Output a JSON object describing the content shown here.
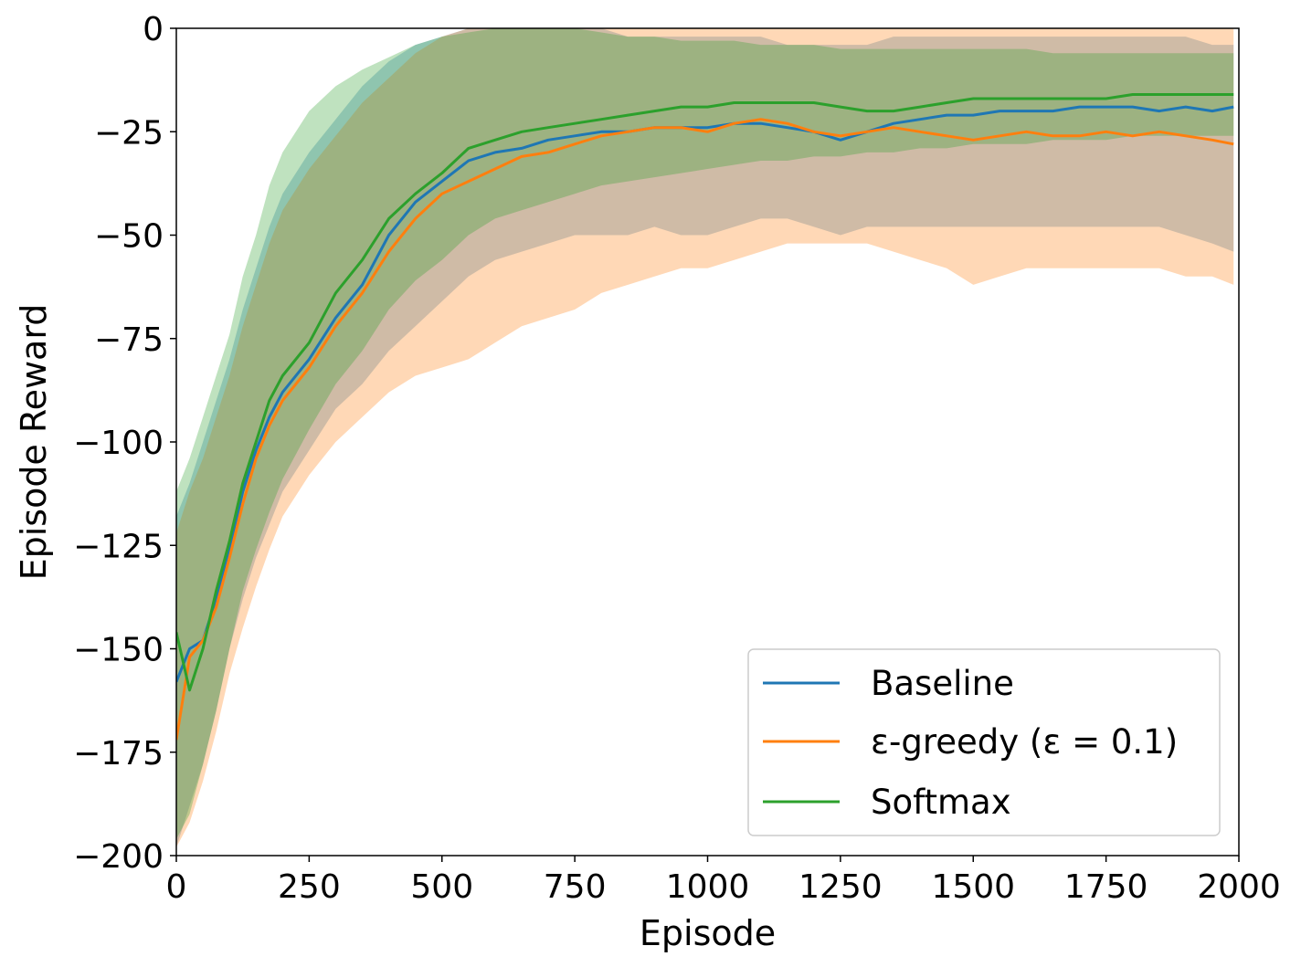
{
  "chart_data": {
    "type": "line",
    "title": "",
    "xlabel": "Episode",
    "ylabel": "Episode Reward",
    "xlim": [
      0,
      2000
    ],
    "ylim": [
      -200,
      0
    ],
    "xticks": [
      0,
      250,
      500,
      750,
      1000,
      1250,
      1500,
      1750,
      2000
    ],
    "yticks": [
      0,
      -25,
      -50,
      -75,
      -100,
      -125,
      -150,
      -175,
      -200
    ],
    "xtick_labels": [
      "0",
      "250",
      "500",
      "750",
      "1000",
      "1250",
      "1500",
      "1750",
      "2000"
    ],
    "ytick_labels": [
      "0",
      "−25",
      "−50",
      "−75",
      "−100",
      "−125",
      "−150",
      "−175",
      "−200"
    ],
    "grid": false,
    "legend_position": "bottom-right",
    "x": [
      0,
      25,
      50,
      75,
      100,
      125,
      150,
      175,
      200,
      250,
      300,
      350,
      400,
      450,
      500,
      550,
      600,
      650,
      700,
      750,
      800,
      850,
      900,
      950,
      1000,
      1050,
      1100,
      1150,
      1200,
      1250,
      1300,
      1350,
      1400,
      1450,
      1500,
      1550,
      1600,
      1650,
      1700,
      1750,
      1800,
      1850,
      1900,
      1950,
      1990
    ],
    "series": [
      {
        "name": "Baseline",
        "color": "#1f77b4",
        "band_opacity": 0.3,
        "values": [
          -158,
          -150,
          -148,
          -138,
          -126,
          -112,
          -102,
          -94,
          -88,
          -80,
          -70,
          -62,
          -50,
          -42,
          -37,
          -32,
          -30,
          -29,
          -27,
          -26,
          -25,
          -25,
          -24,
          -24,
          -24,
          -23,
          -23,
          -24,
          -25,
          -27,
          -25,
          -23,
          -22,
          -21,
          -21,
          -20,
          -20,
          -20,
          -19,
          -19,
          -19,
          -20,
          -19,
          -20,
          -19
        ],
        "lower": [
          -198,
          -188,
          -178,
          -165,
          -150,
          -138,
          -128,
          -120,
          -112,
          -102,
          -92,
          -86,
          -78,
          -72,
          -66,
          -60,
          -56,
          -54,
          -52,
          -50,
          -50,
          -50,
          -48,
          -50,
          -50,
          -48,
          -46,
          -46,
          -48,
          -50,
          -48,
          -48,
          -48,
          -48,
          -48,
          -48,
          -48,
          -48,
          -48,
          -48,
          -48,
          -48,
          -50,
          -52,
          -54
        ],
        "upper": [
          -118,
          -110,
          -100,
          -90,
          -80,
          -68,
          -58,
          -48,
          -40,
          -30,
          -22,
          -14,
          -8,
          -4,
          -2,
          0,
          0,
          0,
          0,
          0,
          0,
          -2,
          -2,
          -2,
          -2,
          -2,
          -2,
          -4,
          -4,
          -4,
          -4,
          -2,
          -2,
          -2,
          -2,
          -2,
          -2,
          -2,
          -2,
          -2,
          -2,
          -2,
          -2,
          -4,
          -4
        ]
      },
      {
        "name": "ε-greedy (ε = 0.1)",
        "color": "#ff7f0e",
        "band_opacity": 0.3,
        "values": [
          -172,
          -152,
          -148,
          -140,
          -128,
          -115,
          -104,
          -96,
          -90,
          -82,
          -72,
          -64,
          -54,
          -46,
          -40,
          -37,
          -34,
          -31,
          -30,
          -28,
          -26,
          -25,
          -24,
          -24,
          -25,
          -23,
          -22,
          -23,
          -25,
          -26,
          -25,
          -24,
          -25,
          -26,
          -27,
          -26,
          -25,
          -26,
          -26,
          -25,
          -26,
          -25,
          -26,
          -27,
          -28
        ],
        "lower": [
          -198,
          -192,
          -182,
          -170,
          -156,
          -145,
          -135,
          -126,
          -118,
          -108,
          -100,
          -94,
          -88,
          -84,
          -82,
          -80,
          -76,
          -72,
          -70,
          -68,
          -64,
          -62,
          -60,
          -58,
          -58,
          -56,
          -54,
          -52,
          -52,
          -52,
          -52,
          -54,
          -56,
          -58,
          -62,
          -60,
          -58,
          -58,
          -58,
          -58,
          -58,
          -58,
          -60,
          -60,
          -62
        ],
        "upper": [
          -122,
          -112,
          -104,
          -94,
          -84,
          -72,
          -62,
          -52,
          -44,
          -34,
          -26,
          -18,
          -12,
          -6,
          -2,
          0,
          0,
          0,
          0,
          0,
          0,
          0,
          0,
          0,
          0,
          0,
          0,
          0,
          0,
          0,
          0,
          0,
          0,
          0,
          0,
          0,
          0,
          0,
          0,
          0,
          0,
          0,
          0,
          0,
          0
        ]
      },
      {
        "name": "Softmax",
        "color": "#2ca02c",
        "band_opacity": 0.3,
        "values": [
          -146,
          -160,
          -150,
          -136,
          -124,
          -110,
          -100,
          -90,
          -84,
          -76,
          -64,
          -56,
          -46,
          -40,
          -35,
          -29,
          -27,
          -25,
          -24,
          -23,
          -22,
          -21,
          -20,
          -19,
          -19,
          -18,
          -18,
          -18,
          -18,
          -19,
          -20,
          -20,
          -19,
          -18,
          -17,
          -17,
          -17,
          -17,
          -17,
          -17,
          -16,
          -16,
          -16,
          -16,
          -16
        ],
        "lower": [
          -196,
          -190,
          -178,
          -165,
          -150,
          -136,
          -126,
          -117,
          -109,
          -97,
          -86,
          -78,
          -68,
          -61,
          -56,
          -50,
          -46,
          -44,
          -42,
          -40,
          -38,
          -37,
          -36,
          -35,
          -34,
          -33,
          -32,
          -32,
          -31,
          -31,
          -30,
          -30,
          -29,
          -29,
          -28,
          -28,
          -28,
          -27,
          -27,
          -27,
          -26,
          -26,
          -26,
          -26,
          -26
        ],
        "upper": [
          -112,
          -104,
          -94,
          -84,
          -74,
          -60,
          -50,
          -38,
          -30,
          -20,
          -14,
          -10,
          -7,
          -4,
          -2,
          -1,
          0,
          0,
          0,
          0,
          -1,
          -2,
          -2,
          -3,
          -3,
          -3,
          -4,
          -4,
          -4,
          -5,
          -5,
          -5,
          -5,
          -5,
          -5,
          -5,
          -5,
          -6,
          -6,
          -6,
          -6,
          -6,
          -6,
          -6,
          -6
        ]
      }
    ]
  }
}
